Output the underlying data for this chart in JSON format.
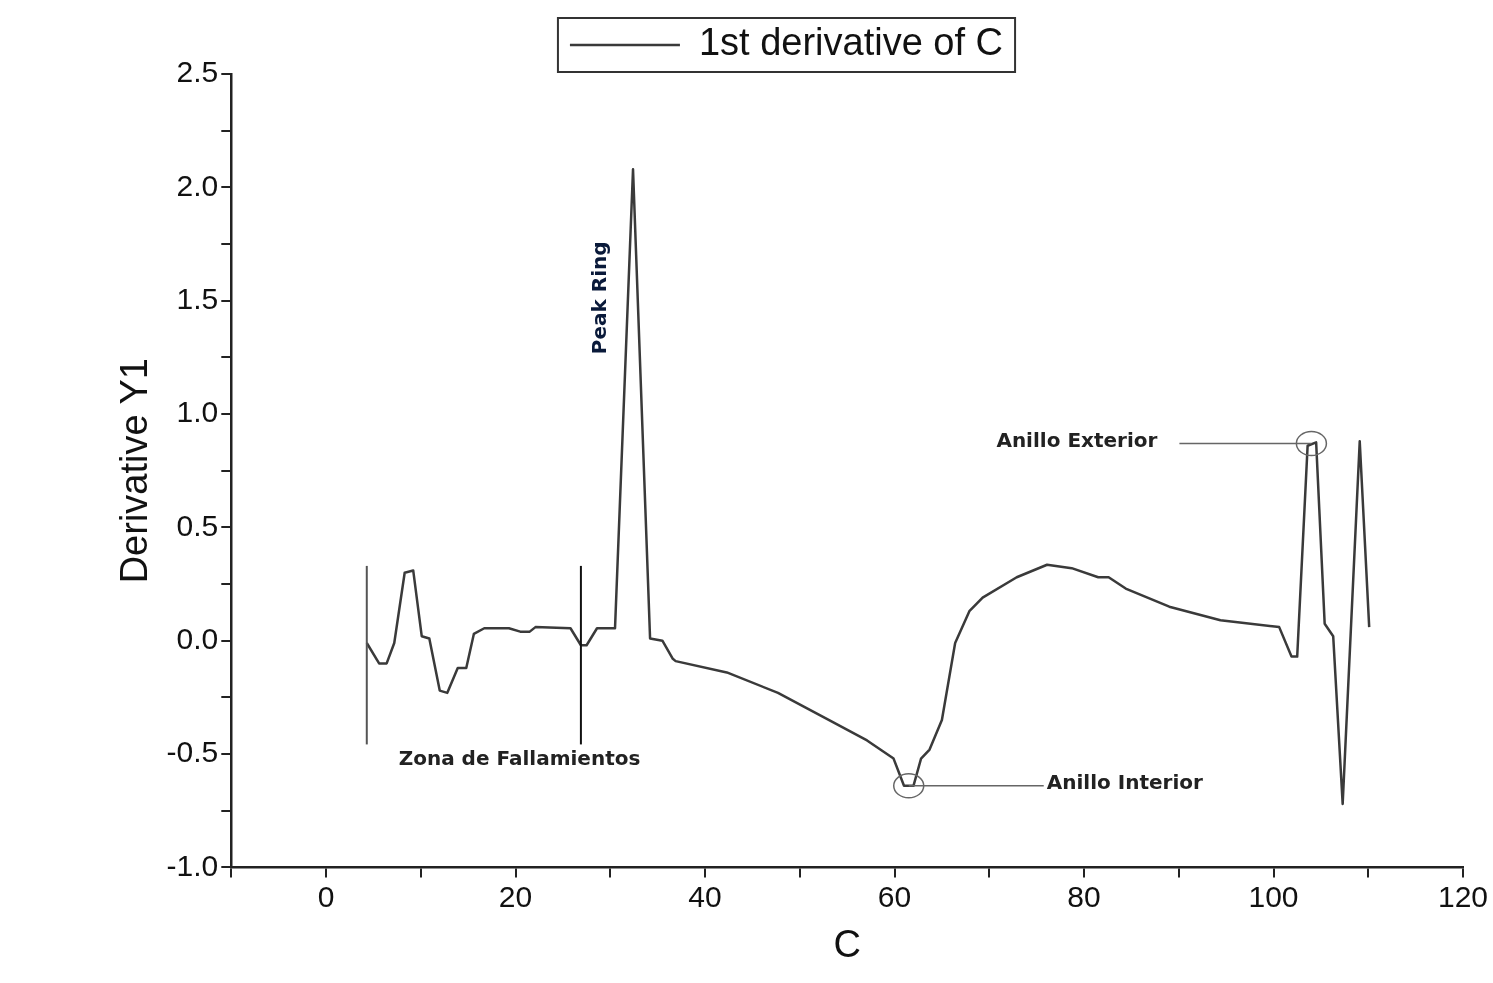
{
  "chart_data": {
    "type": "line",
    "xlabel": "C",
    "ylabel": "Derivative Y1",
    "legend": "top",
    "grid": false,
    "marker": "none",
    "line_style": "solid",
    "xlim": [
      -10,
      120
    ],
    "ylim": [
      -1,
      2.5
    ],
    "xticks": [
      {
        "value": -10,
        "label": null
      },
      0,
      {
        "value": 10,
        "label": null
      },
      20,
      {
        "value": 30,
        "label": null
      },
      40,
      {
        "value": 50,
        "label": null
      },
      60,
      {
        "value": 70,
        "label": null
      },
      80,
      {
        "value": 90,
        "label": null
      },
      100,
      {
        "value": 110,
        "label": null
      },
      120
    ],
    "yticks": [
      {
        "value": -1,
        "label": "-1.0"
      },
      {
        "value": -0.75,
        "label": null
      },
      {
        "value": -0.5,
        "label": "-0.5"
      },
      {
        "value": -0.25,
        "label": null
      },
      {
        "value": 0,
        "label": "0.0"
      },
      {
        "value": 0.25,
        "label": null
      },
      {
        "value": 0.5,
        "label": "0.5"
      },
      {
        "value": 0.75,
        "label": null
      },
      {
        "value": 1,
        "label": "1.0"
      },
      {
        "value": 1.25,
        "label": null
      },
      {
        "value": 1.5,
        "label": "1.5"
      },
      {
        "value": 1.75,
        "label": null
      },
      {
        "value": 2,
        "label": "2.0"
      },
      {
        "value": 2.25,
        "label": null
      },
      {
        "value": 2.5,
        "label": "2.5"
      }
    ],
    "series": [
      {
        "name": "1st derivative of C",
        "color": "#3a3a3a",
        "x": [
          4.3,
          5.6,
          6.4,
          7.2,
          8.3,
          9.2,
          10.1,
          10.9,
          12.0,
          12.8,
          13.9,
          14.8,
          15.6,
          16.7,
          19.3,
          20.5,
          21.5,
          22.1,
          25.8,
          26.9,
          27.5,
          28.6,
          30.5,
          32.4,
          34.2,
          35.5,
          36.6,
          36.9,
          42.3,
          47.7,
          53.1,
          57.1,
          59.9,
          61.0,
          62.0,
          62.8,
          63.7,
          65.0,
          66.4,
          67.9,
          69.3,
          72.9,
          76.1,
          78.7,
          81.5,
          82.6,
          84.4,
          89.0,
          94.4,
          100.6,
          101.9,
          102.5,
          103.6,
          104.5,
          105.4,
          106.3,
          107.3,
          109.1,
          110.1
        ],
        "values": [
          -0.01,
          -0.1,
          -0.1,
          -0.01,
          0.3,
          0.31,
          0.02,
          0.01,
          -0.22,
          -0.23,
          -0.12,
          -0.12,
          0.03,
          0.055,
          0.055,
          0.04,
          0.04,
          0.06,
          0.055,
          -0.02,
          -0.02,
          0.055,
          0.055,
          2.08,
          0.01,
          0.0,
          -0.08,
          -0.09,
          -0.14,
          -0.23,
          -0.35,
          -0.44,
          -0.52,
          -0.64,
          -0.64,
          -0.52,
          -0.48,
          -0.35,
          -0.01,
          0.13,
          0.19,
          0.28,
          0.335,
          0.32,
          0.28,
          0.28,
          0.23,
          0.15,
          0.09,
          0.06,
          -0.07,
          -0.07,
          0.86,
          0.875,
          0.075,
          0.02,
          -0.72,
          0.88,
          0.06
        ]
      }
    ],
    "ref_lines": [
      {
        "axis": "x",
        "value": 4.3,
        "color": "#555555"
      },
      {
        "axis": "x",
        "value": 26.9,
        "color": "#111111"
      }
    ],
    "annotations": [
      "Peak Ring",
      "Zona de Fallamientos",
      {
        "text": "Anillo Interior",
        "x": 61.5,
        "y": -0.64
      },
      {
        "text": "Anillo Exterior",
        "x": 104,
        "y": 0.87
      }
    ]
  }
}
